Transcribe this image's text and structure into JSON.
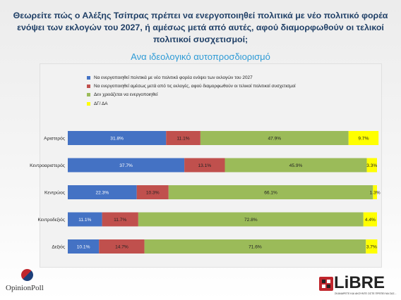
{
  "title": "Θεωρείτε πώς ο Αλέξης Τσίπρας πρέπει να ενεργοποιηθεί πολιτικά με νέο πολιτικό φορέα ενόψει των εκλογών του 2027, ή αμέσως μετά από αυτές, αφού διαμορφωθούν οι τελικοί πολιτικοί συσχετισμοί;",
  "subtitle": "Ανα ιδεολογικό αυτοπροσδιορισμό",
  "logos": {
    "left": "OpinionPoll",
    "right": "LiBRE",
    "right_tagline": "ΣΚΑΝΑΡΕΤΕ ΚΑΙ ΑΚΟΥΝΤΕ ΟΣΤΕ ΠΡΕΠΕΙ ΝΑ ΣΑΣ..."
  },
  "chart_data": {
    "type": "bar",
    "orientation": "horizontal",
    "stacked": true,
    "categories": [
      "Αριστερός",
      "Κεντροαριστερός",
      "Κεντρώος",
      "Κεντροδεξιός",
      "Δεξιός"
    ],
    "series": [
      {
        "name": "Να ενεργοποιηθεί πολιτικά με νέο πολιτικό φορέα ενόψει των εκλογών του 2027",
        "color": "#4472c4",
        "values": [
          31.8,
          37.7,
          22.3,
          11.1,
          10.1
        ],
        "labels": [
          "31.8%",
          "37.7%",
          "22.3%",
          "11.1%",
          "10.1%"
        ]
      },
      {
        "name": "Να ενεργοποιηθεί αμέσως μετά από τις εκλογές, αφού διαμορφωθούν οι τελικοί πολιτικοί συσχετισμοί",
        "color": "#c0504d",
        "values": [
          11.1,
          13.1,
          10.3,
          11.7,
          14.7
        ],
        "labels": [
          "11.1%",
          "13.1%",
          "10.3%",
          "11.7%",
          "14.7%"
        ]
      },
      {
        "name": "Δεν χρειάζεται να ενεργοποιηθεί",
        "color": "#9bbb59",
        "values": [
          47.9,
          45.9,
          66.1,
          72.8,
          71.6
        ],
        "labels": [
          "47.9%",
          "45.9%",
          "66.1%",
          "72.8%",
          "71.6%"
        ]
      },
      {
        "name": "ΔΓ/ ΔΑ",
        "color": "#ffff00",
        "values": [
          9.7,
          3.3,
          1.3,
          4.4,
          3.7
        ],
        "labels": [
          "9.7%",
          "3.3%",
          "1.3%",
          "4.4%",
          "3.7%"
        ]
      }
    ],
    "xlim": [
      0,
      100
    ],
    "grid": false,
    "legend_position": "top-left"
  }
}
